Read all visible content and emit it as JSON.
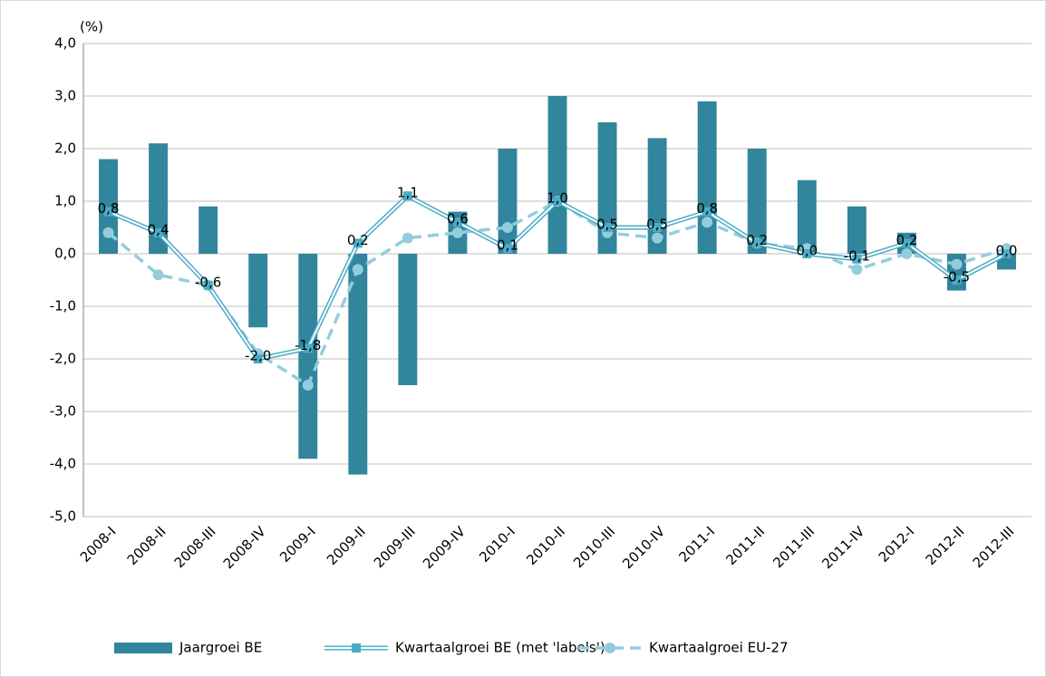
{
  "chart_data": {
    "type": "bar-line",
    "unit_label": "(%)",
    "categories": [
      "2008-I",
      "2008-II",
      "2008-III",
      "2008-IV",
      "2009-I",
      "2009-II",
      "2009-III",
      "2009-IV",
      "2010-I",
      "2010-II",
      "2010-III",
      "2010-IV",
      "2011-I",
      "2011-II",
      "2011-III",
      "2011-IV",
      "2012-I",
      "2012-II",
      "2012-III"
    ],
    "ylim": [
      -5,
      4
    ],
    "yticks": [
      {
        "value": -5,
        "label": "-5,0"
      },
      {
        "value": -4,
        "label": "-4,0"
      },
      {
        "value": -3,
        "label": "-3,0"
      },
      {
        "value": -2,
        "label": "-2,0"
      },
      {
        "value": -1,
        "label": "-1,0"
      },
      {
        "value": 0,
        "label": "0,0"
      },
      {
        "value": 1,
        "label": "1,0"
      },
      {
        "value": 2,
        "label": "2,0"
      },
      {
        "value": 3,
        "label": "3,0"
      },
      {
        "value": 4,
        "label": "4,0"
      }
    ],
    "grid": true,
    "legend": "bottom",
    "series": [
      {
        "name": "Jaargroei BE",
        "kind": "bar",
        "color": "#31859c",
        "values": [
          1.8,
          2.1,
          0.9,
          -1.4,
          -3.9,
          -4.2,
          -2.5,
          0.8,
          2.0,
          3.0,
          2.5,
          2.2,
          2.9,
          2.0,
          1.4,
          0.9,
          0.4,
          -0.7,
          -0.3
        ]
      },
      {
        "name": "Kwartaalgroei BE (met 'labels')",
        "kind": "line",
        "color": "#4bacc6",
        "values": [
          0.8,
          0.4,
          -0.6,
          -2.0,
          -1.8,
          0.2,
          1.1,
          0.6,
          0.1,
          1.0,
          0.5,
          0.5,
          0.8,
          0.2,
          0.0,
          -0.1,
          0.2,
          -0.5,
          0.0
        ],
        "value_labels": [
          "0,8",
          "0,4",
          "-0,6",
          "-2,0",
          "-1,8",
          "0,2",
          "1,1",
          "0,6",
          "0,1",
          "1,0",
          "0,5",
          "0,5",
          "0,8",
          "0,2",
          "0,0",
          "-0,1",
          "0,2",
          "-0,5",
          "0,0"
        ]
      },
      {
        "name": "Kwartaalgroei EU-27",
        "kind": "dashed-line",
        "color": "#93cddd",
        "values": [
          0.4,
          -0.4,
          -0.6,
          -1.9,
          -2.5,
          -0.3,
          0.3,
          0.4,
          0.5,
          1.0,
          0.4,
          0.3,
          0.6,
          0.2,
          0.1,
          -0.3,
          0.0,
          -0.2,
          0.1
        ]
      }
    ]
  }
}
